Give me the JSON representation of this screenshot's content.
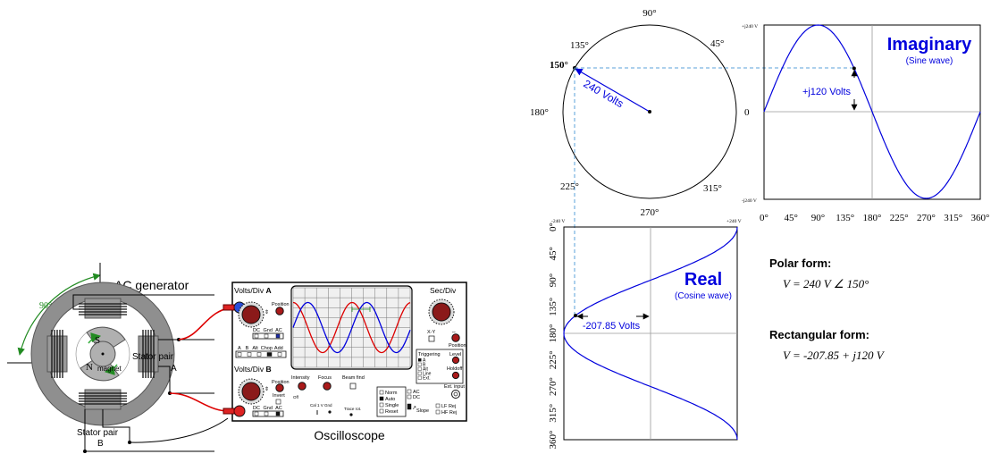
{
  "generator": {
    "title": "AC generator",
    "angle_label": "90°",
    "rotor_s": "S",
    "rotor_n": "N",
    "magnet_label": "magnet",
    "stator_a": [
      "Stator pair",
      "A"
    ],
    "stator_b": [
      "Stator pair",
      "B"
    ]
  },
  "oscilloscope": {
    "label": "Oscilloscope",
    "volts_div_a": "Volts/Div",
    "ch_a": "A",
    "volts_div_b": "Volts/Div",
    "ch_b": "B",
    "position": "Position",
    "invert": "Invert",
    "coupling": [
      "DC",
      "Gnd",
      "AC"
    ],
    "mode": [
      "A",
      "B",
      "Alt",
      "Chop",
      "Add"
    ],
    "sec_div": "Sec/Div",
    "xy": "X-Y",
    "position_right": "Position",
    "triggering": "Triggering",
    "trig_sources": [
      "A",
      "B",
      "Alt",
      "Line",
      "Ext."
    ],
    "level": "Level",
    "holdoff": "Holdoff",
    "ext_input": "Ext. input",
    "intensity": "Intensity",
    "focus": "Focus",
    "beam_find": "Beam find",
    "off": "Off",
    "cal": "Cal 1 V",
    "gnd": "Gnd",
    "trace_rot": "Trace rot.",
    "sweep_modes": [
      "Norm",
      "Auto",
      "Single",
      "Reset"
    ],
    "ac_dc": [
      "AC",
      "DC"
    ],
    "slope": "Slope",
    "filters": [
      "LF Rej",
      "HF Rej"
    ]
  },
  "phasor": {
    "angles": {
      "a90": "90°",
      "a45": "45°",
      "a135": "135°",
      "a150": "150°",
      "a180": "180°",
      "a0": "0",
      "a225": "225°",
      "a315": "315°",
      "a270": "270°"
    },
    "vector_label": "240 Volts"
  },
  "sine_graph": {
    "title": "Imaginary",
    "subtitle": "(Sine wave)",
    "y_max": "+j240 V",
    "y_min": "-j240 V",
    "value_label": "+j120 Volts",
    "x_ticks": [
      "0°",
      "45°",
      "90°",
      "135°",
      "180°",
      "225°",
      "270°",
      "315°",
      "360°"
    ]
  },
  "cosine_graph": {
    "title": "Real",
    "subtitle": "(Cosine wave)",
    "x_min": "-240 V",
    "x_max": "+240 V",
    "value_label": "-207.85 Volts",
    "y_ticks": [
      "0°",
      "45°",
      "90°",
      "135°",
      "180°",
      "225°",
      "270°",
      "315°",
      "360°"
    ]
  },
  "forms": {
    "polar_title": "Polar form:",
    "polar_expr": "V = 240 V ∠ 150°",
    "rect_title": "Rectangular form:",
    "rect_expr": "V = -207.85 + j120 V"
  },
  "colors": {
    "blue": "#0000dd",
    "red": "#dd0000",
    "green": "#228b22",
    "dashed": "#5aa0d8",
    "gray": "#9a9a9a"
  }
}
